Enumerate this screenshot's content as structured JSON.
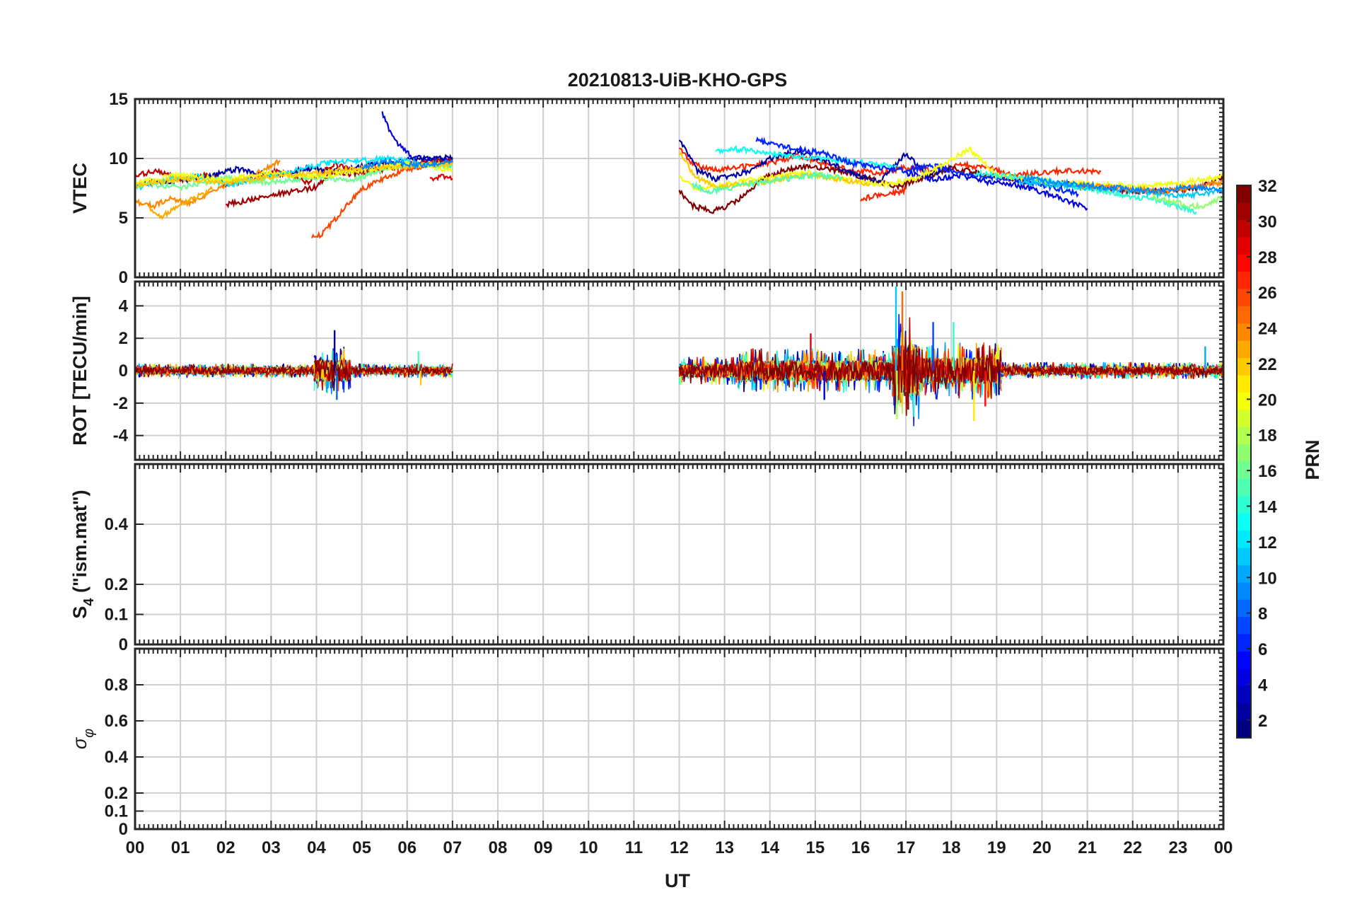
{
  "chart_data": {
    "type": "line",
    "title": "20210813-UiB-KHO-GPS",
    "xlabel": "UT",
    "xlim": [
      0,
      24
    ],
    "x_tick_labels": [
      "00",
      "01",
      "02",
      "03",
      "04",
      "05",
      "06",
      "07",
      "08",
      "09",
      "10",
      "11",
      "12",
      "13",
      "14",
      "15",
      "16",
      "17",
      "18",
      "19",
      "20",
      "21",
      "22",
      "23",
      "00"
    ],
    "colorbar": {
      "label": "PRN",
      "range": [
        1,
        32
      ],
      "tick_labels": [
        "2",
        "4",
        "6",
        "8",
        "10",
        "12",
        "14",
        "16",
        "18",
        "20",
        "22",
        "24",
        "26",
        "28",
        "30",
        "32"
      ],
      "colormap": "jet"
    },
    "panels": [
      {
        "name": "vtec",
        "ylabel": "VTEC",
        "ylim": [
          0,
          15
        ],
        "y_ticks": [
          0,
          5,
          10,
          15
        ],
        "y_tick_labels": [
          "0",
          "5",
          "10",
          "15"
        ],
        "series": [
          {
            "prn": 4,
            "x": [
              5.45,
              5.6,
              5.8,
              6.0,
              6.1,
              6.3,
              6.6,
              7.0
            ],
            "y": [
              13.8,
              12.5,
              11.2,
              10.5,
              10.2,
              10.0,
              9.9,
              10.0
            ]
          },
          {
            "prn": 2,
            "x": [
              0.0,
              0.8,
              1.6,
              2.2,
              3.0,
              3.8,
              4.6,
              5.4,
              6.2,
              7.0
            ],
            "y": [
              7.8,
              8.1,
              8.4,
              9.1,
              8.6,
              9.1,
              9.0,
              9.6,
              9.9,
              10.1
            ]
          },
          {
            "prn": 30,
            "x": [
              0.0,
              0.5,
              1.0,
              1.6,
              2.0,
              2.6,
              3.2,
              3.8,
              4.4,
              5.0,
              5.6,
              6.4,
              7.0
            ],
            "y": [
              8.5,
              9.0,
              8.2,
              8.6,
              7.8,
              8.3,
              9.0,
              8.0,
              9.5,
              8.8,
              9.3,
              9.6,
              9.7
            ]
          },
          {
            "prn": 31,
            "x": [
              2.0,
              2.5,
              3.0,
              3.5,
              4.0,
              4.3,
              4.6,
              5.2,
              5.8,
              6.4,
              7.0
            ],
            "y": [
              6.1,
              6.5,
              6.9,
              7.2,
              7.6,
              8.9,
              8.6,
              9.0,
              9.3,
              9.6,
              9.8
            ]
          },
          {
            "prn": 24,
            "x": [
              0.0,
              0.4,
              0.8,
              1.2,
              1.6,
              2.0,
              2.6,
              3.2
            ],
            "y": [
              6.4,
              6.0,
              6.6,
              6.2,
              6.9,
              7.8,
              8.6,
              9.8
            ]
          },
          {
            "prn": 23,
            "x": [
              0.3,
              0.6,
              0.9,
              1.3,
              1.7
            ],
            "y": [
              5.9,
              5.1,
              6.0,
              6.7,
              7.4
            ]
          },
          {
            "prn": 26,
            "x": [
              3.9,
              4.1,
              4.4,
              4.7,
              5.0,
              5.5,
              6.0,
              6.5,
              7.0
            ],
            "y": [
              3.4,
              3.6,
              4.8,
              6.2,
              7.4,
              8.4,
              9.1,
              9.5,
              9.6
            ]
          },
          {
            "prn": 29,
            "x": [
              6.5,
              6.8,
              7.0
            ],
            "y": [
              8.2,
              8.5,
              8.3
            ]
          },
          {
            "prn": 12,
            "x": [
              0.0,
              0.7,
              1.4,
              2.1,
              2.8,
              3.5,
              4.2,
              4.9,
              5.6,
              6.3,
              7.0
            ],
            "y": [
              7.5,
              8.2,
              8.5,
              7.8,
              8.4,
              9.0,
              9.6,
              9.8,
              10.0,
              9.6,
              9.4
            ]
          },
          {
            "prn": 16,
            "x": [
              0.0,
              1.0,
              2.0,
              3.0,
              4.0,
              4.8,
              5.5,
              6.2,
              7.0
            ],
            "y": [
              7.9,
              7.6,
              8.3,
              8.0,
              8.4,
              8.1,
              9.2,
              9.5,
              9.4
            ]
          },
          {
            "prn": 20,
            "x": [
              0.0,
              1.0,
              2.0,
              3.0,
              4.0,
              5.0,
              6.0,
              7.0
            ],
            "y": [
              8.0,
              8.6,
              8.2,
              8.8,
              8.5,
              9.0,
              9.6,
              9.0
            ]
          },
          {
            "prn": 22,
            "x": [
              0.0,
              1.0,
              2.0,
              3.0,
              4.0,
              5.0,
              6.0,
              7.0
            ],
            "y": [
              7.7,
              8.3,
              8.0,
              8.4,
              8.8,
              9.2,
              9.3,
              9.6
            ]
          },
          {
            "prn": 9,
            "x": [
              5.0,
              5.6,
              6.0,
              6.4,
              7.0
            ],
            "y": [
              9.2,
              9.8,
              9.5,
              9.4,
              9.7
            ]
          },
          {
            "prn": 27,
            "x": [
              12.0,
              12.3,
              12.8,
              13.4,
              14.0,
              14.6,
              15.2,
              15.8,
              16.4,
              17.0,
              17.6,
              18.2,
              18.8,
              19.4,
              20.0,
              20.6,
              21.3
            ],
            "y": [
              11.0,
              9.5,
              9.0,
              9.3,
              9.6,
              10.2,
              9.5,
              9.0,
              8.8,
              9.2,
              9.0,
              9.5,
              9.2,
              8.6,
              8.8,
              9.0,
              8.9
            ]
          },
          {
            "prn": 32,
            "x": [
              12.0,
              12.3,
              12.7,
              13.0,
              13.4,
              13.8,
              14.3,
              14.8,
              15.5,
              16.2,
              16.8,
              17.4,
              18.0,
              18.6,
              19.2,
              19.8,
              20.4,
              21.0,
              21.6,
              22.2,
              22.8,
              23.4,
              24.0
            ],
            "y": [
              7.2,
              6.0,
              5.6,
              5.8,
              6.8,
              8.2,
              9.0,
              9.3,
              9.0,
              8.3,
              7.6,
              8.4,
              9.2,
              8.8,
              8.2,
              8.0,
              7.9,
              7.6,
              7.4,
              7.2,
              7.3,
              7.5,
              8.4
            ]
          },
          {
            "prn": 2,
            "x": [
              12.0,
              12.4,
              12.8,
              13.2,
              13.6,
              14.0,
              14.6,
              15.2,
              15.8,
              16.4,
              17.0,
              17.5,
              18.0
            ],
            "y": [
              11.6,
              9.0,
              8.3,
              8.6,
              9.0,
              10.0,
              10.6,
              9.8,
              8.8,
              8.0,
              10.4,
              8.6,
              9.4
            ]
          },
          {
            "prn": 4,
            "x": [
              17.0,
              17.6,
              18.2,
              18.8,
              19.4,
              20.0,
              20.5,
              21.0
            ],
            "y": [
              8.8,
              8.2,
              8.6,
              8.0,
              7.8,
              7.2,
              6.5,
              5.8
            ]
          },
          {
            "prn": 13,
            "x": [
              12.8,
              13.2,
              13.8,
              14.4,
              15.0,
              15.6,
              16.2,
              16.8
            ],
            "y": [
              10.6,
              10.8,
              10.6,
              10.2,
              10.0,
              9.8,
              9.6,
              9.4
            ]
          },
          {
            "prn": 6,
            "x": [
              13.7,
              14.0,
              14.6,
              15.2,
              15.8,
              16.4,
              17.0,
              17.6,
              18.2,
              18.8,
              19.4,
              20.0,
              20.8
            ],
            "y": [
              11.6,
              11.2,
              10.8,
              10.4,
              9.6,
              9.2,
              9.0,
              9.4,
              8.8,
              8.5,
              8.2,
              7.8,
              7.0
            ]
          },
          {
            "prn": 20,
            "x": [
              12.0,
              12.4,
              13.0,
              13.6,
              14.2,
              14.8,
              15.4,
              16.0,
              16.6,
              17.2,
              17.8,
              18.4,
              19.0,
              19.8,
              20.6,
              21.4,
              22.2,
              23.0,
              24.0
            ],
            "y": [
              8.4,
              7.4,
              7.8,
              8.2,
              8.5,
              8.8,
              8.4,
              8.0,
              7.8,
              8.3,
              9.4,
              10.8,
              8.6,
              8.2,
              7.9,
              7.8,
              7.6,
              7.9,
              8.5
            ]
          },
          {
            "prn": 22,
            "x": [
              12.0,
              12.4,
              12.8,
              13.2,
              13.8,
              14.4,
              15.0,
              15.6,
              16.2
            ],
            "y": [
              10.4,
              8.3,
              7.6,
              7.8,
              8.0,
              8.4,
              8.6,
              8.2,
              7.9
            ]
          },
          {
            "prn": 15,
            "x": [
              12.3,
              12.7,
              13.2,
              13.8,
              14.4,
              15.0,
              15.6
            ],
            "y": [
              7.8,
              7.2,
              7.6,
              8.0,
              8.3,
              8.6,
              8.4
            ]
          },
          {
            "prn": 14,
            "x": [
              18.5,
              19.0,
              19.6,
              20.2,
              20.8,
              21.4,
              22.0,
              22.6,
              23.0,
              23.4
            ],
            "y": [
              8.8,
              8.6,
              8.4,
              8.0,
              7.6,
              7.2,
              6.8,
              6.5,
              6.0,
              5.5
            ]
          },
          {
            "prn": 11,
            "x": [
              19.5,
              20.2,
              20.8,
              21.4,
              22.0,
              22.6,
              23.2,
              23.8,
              24.0
            ],
            "y": [
              8.0,
              7.8,
              7.6,
              7.4,
              7.3,
              7.0,
              6.9,
              7.2,
              7.4
            ]
          },
          {
            "prn": 24,
            "x": [
              20.8,
              21.4,
              22.0,
              22.6,
              23.0,
              23.4,
              24.0
            ],
            "y": [
              7.8,
              7.6,
              7.4,
              7.2,
              7.4,
              7.6,
              8.0
            ]
          },
          {
            "prn": 27,
            "x": [
              16.0,
              16.4,
              16.8,
              17.0
            ],
            "y": [
              6.6,
              6.9,
              7.1,
              7.4
            ]
          },
          {
            "prn": 17,
            "x": [
              22.4,
              22.8,
              23.2,
              23.6,
              24.0
            ],
            "y": [
              6.7,
              6.4,
              6.1,
              5.9,
              6.8
            ]
          },
          {
            "prn": 9,
            "x": [
              19.6,
              20.2,
              20.8,
              21.4,
              22.0,
              22.6,
              23.2,
              23.8,
              24.0
            ],
            "y": [
              8.4,
              8.0,
              7.8,
              7.6,
              7.4,
              7.2,
              7.6,
              7.4,
              7.0
            ]
          }
        ]
      },
      {
        "name": "rot",
        "ylabel": "ROT [TECU/min]",
        "ylim": [
          -5.5,
          5.5
        ],
        "y_ticks": [
          -4,
          -2,
          0,
          2,
          4
        ],
        "y_tick_labels": [
          "-4",
          "-2",
          "0",
          "2",
          "4"
        ],
        "segments": [
          {
            "x_start": 0.0,
            "x_end": 7.0,
            "amplitude": 0.45
          },
          {
            "x_start": 3.95,
            "x_end": 4.75,
            "amplitude": 1.5
          },
          {
            "x_start": 12.0,
            "x_end": 13.3,
            "amplitude": 0.9
          },
          {
            "x_start": 13.3,
            "x_end": 16.7,
            "amplitude": 1.4
          },
          {
            "x_start": 16.7,
            "x_end": 17.3,
            "amplitude": 3.6
          },
          {
            "x_start": 17.3,
            "x_end": 19.1,
            "amplitude": 1.8
          },
          {
            "x_start": 19.1,
            "x_end": 24.0,
            "amplitude": 0.55
          }
        ],
        "spikes": [
          {
            "x": 4.4,
            "y": 2.5
          },
          {
            "x": 4.45,
            "y": -1.8
          },
          {
            "x": 6.25,
            "y": 1.2
          },
          {
            "x": 6.3,
            "y": -0.9
          },
          {
            "x": 14.9,
            "y": 2.3
          },
          {
            "x": 15.2,
            "y": -1.8
          },
          {
            "x": 16.78,
            "y": 5.2
          },
          {
            "x": 16.8,
            "y": -3.0
          },
          {
            "x": 16.92,
            "y": 4.9
          },
          {
            "x": 17.05,
            "y": -2.4
          },
          {
            "x": 17.6,
            "y": 3.0
          },
          {
            "x": 18.05,
            "y": 3.0
          },
          {
            "x": 18.5,
            "y": -3.1
          },
          {
            "x": 18.75,
            "y": -2.2
          },
          {
            "x": 19.05,
            "y": -1.5
          },
          {
            "x": 23.6,
            "y": 1.5
          }
        ]
      },
      {
        "name": "s4",
        "ylabel": "S4 (\"ism.mat\")",
        "ylabel_main": "S",
        "ylabel_sub": "4",
        "ylabel_rest": " (\"ism.mat\")",
        "ylim": [
          0,
          0.6
        ],
        "y_ticks": [
          0,
          0.1,
          0.2,
          0.4
        ],
        "y_tick_labels": [
          "0",
          "0.1",
          "0.2",
          "0.4"
        ],
        "series": []
      },
      {
        "name": "sigma_phi",
        "ylabel": "σφ",
        "ylabel_main": "σ",
        "ylabel_sub": "φ",
        "ylim": [
          0,
          1.0
        ],
        "y_ticks": [
          0,
          0.1,
          0.2,
          0.4,
          0.6,
          0.8
        ],
        "y_tick_labels": [
          "0",
          "0.1",
          "0.2",
          "0.4",
          "0.6",
          "0.8"
        ],
        "series": []
      }
    ]
  }
}
